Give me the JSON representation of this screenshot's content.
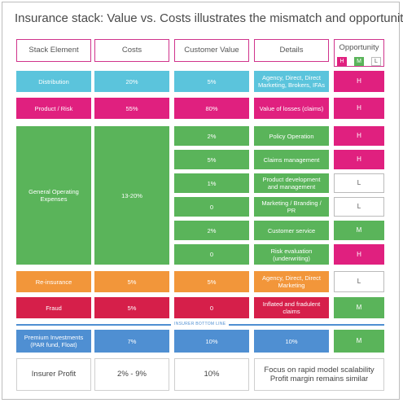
{
  "title": "Insurance stack: Value vs. Costs illustrates the mismatch and opportunities",
  "headers": {
    "stack": "Stack Element",
    "costs": "Costs",
    "value": "Customer Value",
    "details": "Details",
    "opportunity": "Opportunity"
  },
  "legend": {
    "h": "H",
    "m": "M",
    "l": "L"
  },
  "rows": {
    "distribution": {
      "element": "Distribution",
      "cost": "20%",
      "value": "5%",
      "details": "Agency, Direct, Direct Marketing, Brokers, IFAs",
      "opp": "H"
    },
    "product": {
      "element": "Product / Risk",
      "cost": "55%",
      "value": "80%",
      "details": "Value of losses (claims)",
      "opp": "H"
    },
    "opex": {
      "element": "General Operating Expenses",
      "cost": "13-20%",
      "sub": [
        {
          "value": "2%",
          "details": "Policy Operation",
          "opp": "H"
        },
        {
          "value": "5%",
          "details": "Claims management",
          "opp": "H"
        },
        {
          "value": "1%",
          "details": "Product development and management",
          "opp": "L"
        },
        {
          "value": "0",
          "details": "Marketing / Branding / PR",
          "opp": "L"
        },
        {
          "value": "2%",
          "details": "Customer service",
          "opp": "M"
        },
        {
          "value": "0",
          "details": "Risk evaluation (underwriting)",
          "opp": "H"
        }
      ]
    },
    "reinsurance": {
      "element": "Re-insurance",
      "cost": "5%",
      "value": "5%",
      "details": "Agency, Direct, Direct Marketing",
      "opp": "L"
    },
    "fraud": {
      "element": "Fraud",
      "cost": "5%",
      "value": "0",
      "details": "Inflated and fradulent claims",
      "opp": "M"
    },
    "premium": {
      "element": "Premium Investments (PAR fund, Float)",
      "cost": "7%",
      "value": "10%",
      "details": "10%",
      "opp": "M"
    }
  },
  "bottom_line": "INSURER BOTTOM LINE",
  "profit": {
    "label": "Insurer Profit",
    "cost": "2% - 9%",
    "value": "10%",
    "details_line1": "Focus on rapid model scalability",
    "details_line2": "Profit margin remains similar"
  }
}
